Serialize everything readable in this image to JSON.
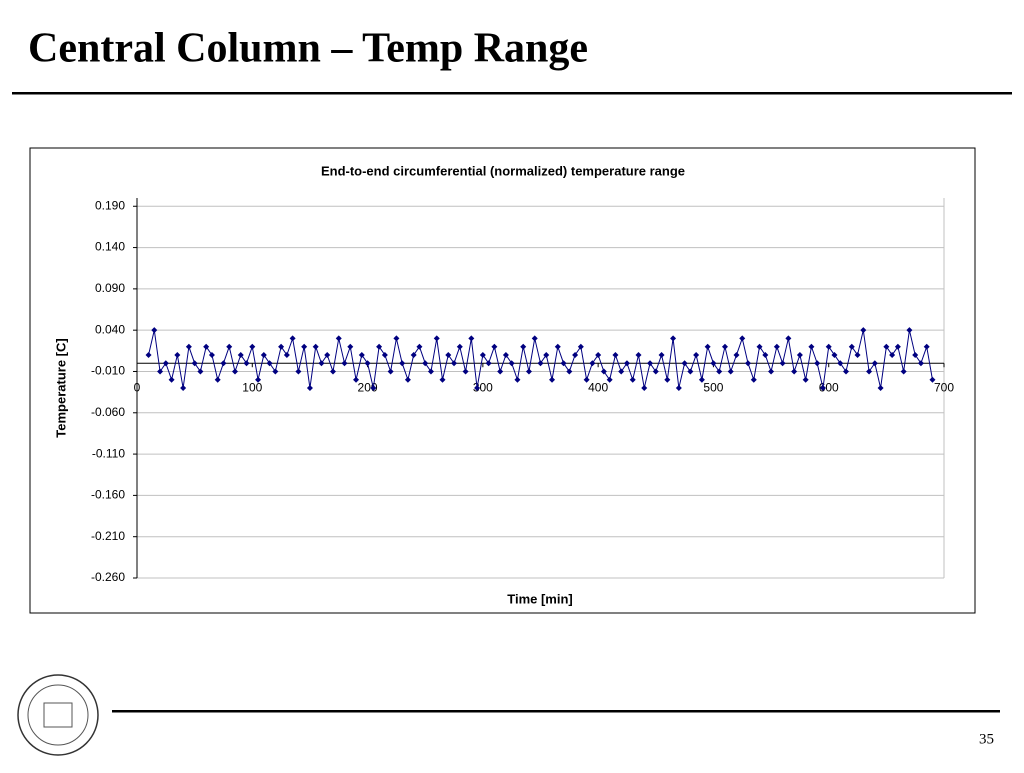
{
  "slide": {
    "title": "Central Column – Temp Range",
    "page_number": "35"
  },
  "chart_data": {
    "type": "line",
    "title": "End-to-end circumferential (normalized) temperature range",
    "x_label": "Time [min]",
    "y_label": "Temperature [C]",
    "xlim": [
      0,
      700
    ],
    "xticks": [
      0,
      100,
      200,
      300,
      400,
      500,
      600,
      700
    ],
    "ylim": [
      -0.26,
      0.2
    ],
    "yticks": [
      {
        "value": -0.26,
        "label": "-0.260"
      },
      {
        "value": -0.21,
        "label": "-0.210"
      },
      {
        "value": -0.16,
        "label": "-0.160"
      },
      {
        "value": -0.11,
        "label": "-0.110"
      },
      {
        "value": -0.06,
        "label": "-0.060"
      },
      {
        "value": -0.01,
        "label": "-0.010"
      },
      {
        "value": 0.04,
        "label": "0.040"
      },
      {
        "value": 0.09,
        "label": "0.090"
      },
      {
        "value": 0.14,
        "label": "0.140"
      },
      {
        "value": 0.19,
        "label": "0.190"
      }
    ],
    "grid": true,
    "series": [
      {
        "color": "#000080",
        "x": [
          10,
          15,
          20,
          25,
          30,
          35,
          40,
          45,
          50,
          55,
          60,
          65,
          70,
          75,
          80,
          85,
          90,
          95,
          100,
          105,
          110,
          115,
          120,
          125,
          130,
          135,
          140,
          145,
          150,
          155,
          160,
          165,
          170,
          175,
          180,
          185,
          190,
          195,
          200,
          205,
          210,
          215,
          220,
          225,
          230,
          235,
          240,
          245,
          250,
          255,
          260,
          265,
          270,
          275,
          280,
          285,
          290,
          295,
          300,
          305,
          310,
          315,
          320,
          325,
          330,
          335,
          340,
          345,
          350,
          355,
          360,
          365,
          370,
          375,
          380,
          385,
          390,
          395,
          400,
          405,
          410,
          415,
          420,
          425,
          430,
          435,
          440,
          445,
          450,
          455,
          460,
          465,
          470,
          475,
          480,
          485,
          490,
          495,
          500,
          505,
          510,
          515,
          520,
          525,
          530,
          535,
          540,
          545,
          550,
          555,
          560,
          565,
          570,
          575,
          580,
          585,
          590,
          595,
          600,
          605,
          610,
          615,
          620,
          625,
          630,
          635,
          640,
          645,
          650,
          655,
          660,
          665,
          670,
          675,
          680,
          685,
          690
        ],
        "values": [
          0.01,
          0.04,
          -0.01,
          0.0,
          -0.02,
          0.01,
          -0.03,
          0.02,
          0.0,
          -0.01,
          0.02,
          0.01,
          -0.02,
          0.0,
          0.02,
          -0.01,
          0.01,
          0.0,
          0.02,
          -0.02,
          0.01,
          0.0,
          -0.01,
          0.02,
          0.01,
          0.03,
          -0.01,
          0.02,
          -0.03,
          0.02,
          0.0,
          0.01,
          -0.01,
          0.03,
          0.0,
          0.02,
          -0.02,
          0.01,
          0.0,
          -0.03,
          0.02,
          0.01,
          -0.01,
          0.03,
          0.0,
          -0.02,
          0.01,
          0.02,
          0.0,
          -0.01,
          0.03,
          -0.02,
          0.01,
          0.0,
          0.02,
          -0.01,
          0.03,
          -0.03,
          0.01,
          0.0,
          0.02,
          -0.01,
          0.01,
          0.0,
          -0.02,
          0.02,
          -0.01,
          0.03,
          0.0,
          0.01,
          -0.02,
          0.02,
          0.0,
          -0.01,
          0.01,
          0.02,
          -0.02,
          0.0,
          0.01,
          -0.01,
          -0.02,
          0.01,
          -0.01,
          0.0,
          -0.02,
          0.01,
          -0.03,
          0.0,
          -0.01,
          0.01,
          -0.02,
          0.03,
          -0.03,
          0.0,
          -0.01,
          0.01,
          -0.02,
          0.02,
          0.0,
          -0.01,
          0.02,
          -0.01,
          0.01,
          0.03,
          0.0,
          -0.02,
          0.02,
          0.01,
          -0.01,
          0.02,
          0.0,
          0.03,
          -0.01,
          0.01,
          -0.02,
          0.02,
          0.0,
          -0.03,
          0.02,
          0.01,
          0.0,
          -0.01,
          0.02,
          0.01,
          0.04,
          -0.01,
          0.0,
          -0.03,
          0.02,
          0.01,
          0.02,
          -0.01,
          0.04,
          0.01,
          0.0,
          0.02,
          -0.02
        ]
      }
    ]
  }
}
